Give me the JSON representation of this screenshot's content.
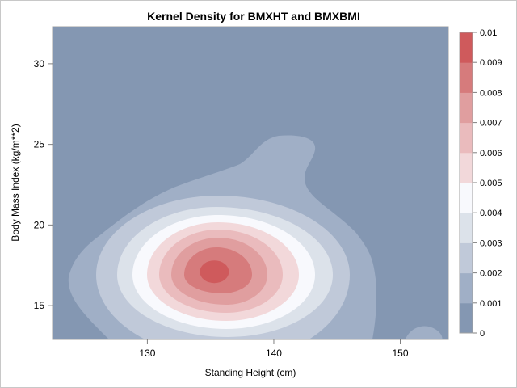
{
  "chart_data": {
    "type": "heatmap",
    "subtype": "filled-contour",
    "title": "Kernel Density for BMXHT and BMXBMI",
    "xlabel": "Standing Height (cm)",
    "ylabel": "Body Mass Index (kg/m**2)",
    "xlim": [
      122.5,
      153.8
    ],
    "ylim": [
      12.9,
      32.3
    ],
    "xticks": [
      "130",
      "140",
      "150"
    ],
    "xtick_values": [
      130,
      140,
      150
    ],
    "yticks": [
      "15",
      "20",
      "25",
      "30"
    ],
    "ytick_values": [
      15,
      20,
      25,
      30
    ],
    "peak": {
      "x": 135.3,
      "y": 17.1,
      "density": 0.0095
    },
    "legend": {
      "placement": "right",
      "labels": [
        "0",
        "0.001",
        "0.002",
        "0.003",
        "0.004",
        "0.005",
        "0.006",
        "0.007",
        "0.008",
        "0.009",
        "0.01"
      ],
      "levels": [
        0,
        0.001,
        0.002,
        0.003,
        0.004,
        0.005,
        0.006,
        0.007,
        0.008,
        0.009,
        0.01
      ],
      "colors": [
        "#8497b2",
        "#a0afc6",
        "#c0c9d9",
        "#dce2ea",
        "#f8f9fd",
        "#f2d8da",
        "#eabbbd",
        "#e09e9f",
        "#d67b7c",
        "#cf5a5c"
      ]
    }
  }
}
